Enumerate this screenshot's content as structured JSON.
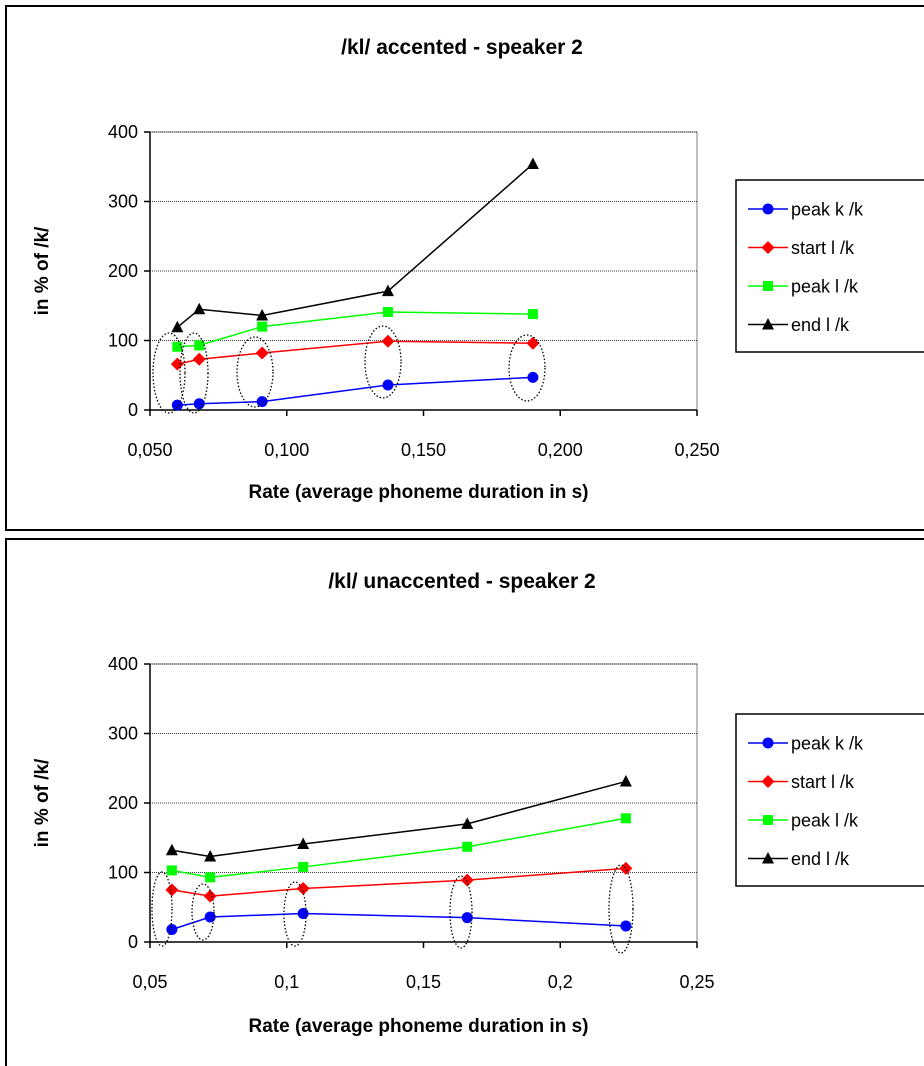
{
  "chart_data": [
    {
      "type": "line",
      "title": "/kl/ accented - speaker 2",
      "xlabel": "Rate (average phoneme duration in s)",
      "ylabel": "in % of /k/",
      "xlim": [
        0.05,
        0.25
      ],
      "ylim": [
        0,
        400
      ],
      "xticks": [
        0.05,
        0.1,
        0.15,
        0.2,
        0.25
      ],
      "xtick_labels": [
        "0,050",
        "0,100",
        "0,150",
        "0,200",
        "0,250"
      ],
      "yticks": [
        0,
        100,
        200,
        300,
        400
      ],
      "ytick_labels": [
        "0",
        "100",
        "200",
        "300",
        "400"
      ],
      "grid": "horizontal",
      "legend_position": "right",
      "x": [
        0.06,
        0.068,
        0.091,
        0.137,
        0.19
      ],
      "series": [
        {
          "name": "peak k /k",
          "color": "#0000ff",
          "marker": "circle",
          "values": [
            7,
            9,
            12,
            36,
            47
          ]
        },
        {
          "name": "start l /k",
          "color": "#ff0000",
          "marker": "diamond",
          "values": [
            66,
            73,
            82,
            99,
            96
          ]
        },
        {
          "name": "peak l /k",
          "color": "#00ff00",
          "marker": "square",
          "values": [
            91,
            93,
            120,
            141,
            138
          ]
        },
        {
          "name": "end l /k",
          "color": "#000000",
          "marker": "triangle",
          "values": [
            119,
            145,
            136,
            171,
            354
          ]
        }
      ],
      "annotations": "dotted ellipses around the peak k and start l points at each rate"
    },
    {
      "type": "line",
      "title": "/kl/ unaccented - speaker 2",
      "xlabel": "Rate (average phoneme duration in s)",
      "ylabel": "in % of /k/",
      "xlim": [
        0.05,
        0.25
      ],
      "ylim": [
        0,
        400
      ],
      "xticks": [
        0.05,
        0.1,
        0.15,
        0.2,
        0.25
      ],
      "xtick_labels": [
        "0,05",
        "0,1",
        "0,15",
        "0,2",
        "0,25"
      ],
      "yticks": [
        0,
        100,
        200,
        300,
        400
      ],
      "ytick_labels": [
        "0",
        "100",
        "200",
        "300",
        "400"
      ],
      "grid": "horizontal",
      "legend_position": "right",
      "x": [
        0.058,
        0.072,
        0.106,
        0.166,
        0.224
      ],
      "series": [
        {
          "name": "peak k /k",
          "color": "#0000ff",
          "marker": "circle",
          "values": [
            18,
            36,
            41,
            35,
            23
          ]
        },
        {
          "name": "start l /k",
          "color": "#ff0000",
          "marker": "diamond",
          "values": [
            75,
            66,
            77,
            89,
            106
          ]
        },
        {
          "name": "peak l /k",
          "color": "#00ff00",
          "marker": "square",
          "values": [
            103,
            93,
            108,
            137,
            178
          ]
        },
        {
          "name": "end l /k",
          "color": "#000000",
          "marker": "triangle",
          "values": [
            132,
            123,
            141,
            170,
            231
          ]
        }
      ],
      "annotations": "dotted ellipses around the peak k and start l points at each rate"
    }
  ]
}
